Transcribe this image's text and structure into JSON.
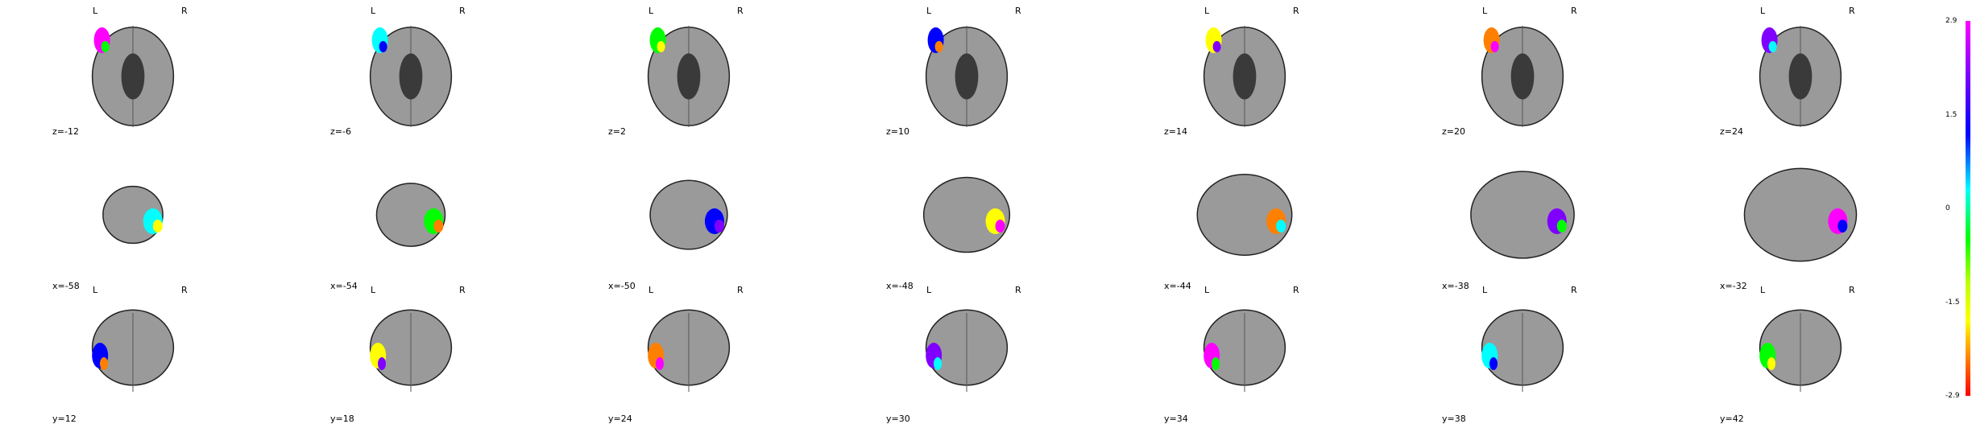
{
  "colors": {
    "background": "#ffffff",
    "text": "#000000",
    "brain_fill": "#9a9a9a",
    "brain_edge": "#222222",
    "colorbar_stops": [
      "#ff00ff",
      "#8000ff",
      "#0000ff",
      "#00ffff",
      "#00ff00",
      "#c0ff00",
      "#ffff00",
      "#ff8000",
      "#ff0000"
    ]
  },
  "orientation_labels": {
    "left": "L",
    "right": "R"
  },
  "rows": [
    {
      "view": "axial",
      "show_lr": true,
      "slices": [
        {
          "coord": "z=-12"
        },
        {
          "coord": "z=-6"
        },
        {
          "coord": "z=2"
        },
        {
          "coord": "z=10"
        },
        {
          "coord": "z=14"
        },
        {
          "coord": "z=20"
        },
        {
          "coord": "z=24"
        }
      ]
    },
    {
      "view": "sagittal",
      "show_lr": false,
      "slices": [
        {
          "coord": "x=-58"
        },
        {
          "coord": "x=-54"
        },
        {
          "coord": "x=-50"
        },
        {
          "coord": "x=-48"
        },
        {
          "coord": "x=-44"
        },
        {
          "coord": "x=-38"
        },
        {
          "coord": "x=-32"
        }
      ]
    },
    {
      "view": "coronal",
      "show_lr": true,
      "slices": [
        {
          "coord": "y=12"
        },
        {
          "coord": "y=18"
        },
        {
          "coord": "y=24"
        },
        {
          "coord": "y=30"
        },
        {
          "coord": "y=34"
        },
        {
          "coord": "y=38"
        },
        {
          "coord": "y=42"
        }
      ]
    }
  ],
  "colorbar": {
    "ticks": [
      "2.9",
      "1.5",
      "0",
      "-1.5",
      "-2.9"
    ]
  }
}
